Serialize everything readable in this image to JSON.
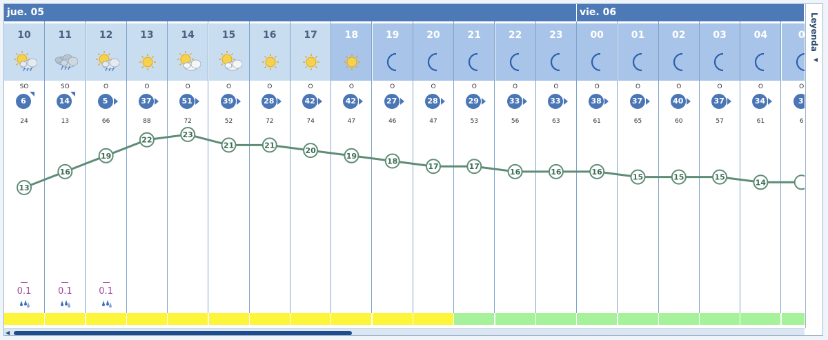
{
  "days": [
    {
      "label": "jue. 05"
    },
    {
      "label": "vie. 06"
    }
  ],
  "legend": {
    "label": "Leyenda",
    "arrow_icon": "arrow-left-icon"
  },
  "hours": [
    {
      "hour": "10",
      "period": "day",
      "icon": "sun-cloud-rain-icon",
      "wind_dir": "SO",
      "wind": "6",
      "wind_arrow": "ne",
      "humidity": "24",
      "temp": "13",
      "precip": "0.1",
      "band": "yellow"
    },
    {
      "hour": "11",
      "period": "day",
      "icon": "cloud-rain-icon",
      "wind_dir": "SO",
      "wind": "14",
      "wind_arrow": "ne",
      "humidity": "13",
      "temp": "16",
      "precip": "0.1",
      "band": "yellow"
    },
    {
      "hour": "12",
      "period": "day",
      "icon": "sun-cloud-rain-icon",
      "wind_dir": "O",
      "wind": "5",
      "wind_arrow": "e",
      "humidity": "66",
      "temp": "19",
      "precip": "0.1",
      "band": "yellow"
    },
    {
      "hour": "13",
      "period": "day",
      "icon": "sun-icon",
      "wind_dir": "O",
      "wind": "37",
      "wind_arrow": "e",
      "humidity": "88",
      "temp": "22",
      "precip": "",
      "band": "yellow"
    },
    {
      "hour": "14",
      "period": "day",
      "icon": "sun-cloud-icon",
      "wind_dir": "O",
      "wind": "51",
      "wind_arrow": "e",
      "humidity": "72",
      "temp": "23",
      "precip": "",
      "band": "yellow"
    },
    {
      "hour": "15",
      "period": "day",
      "icon": "sun-cloud-icon",
      "wind_dir": "O",
      "wind": "39",
      "wind_arrow": "e",
      "humidity": "52",
      "temp": "21",
      "precip": "",
      "band": "yellow"
    },
    {
      "hour": "16",
      "period": "day",
      "icon": "sun-icon",
      "wind_dir": "O",
      "wind": "28",
      "wind_arrow": "e",
      "humidity": "72",
      "temp": "21",
      "precip": "",
      "band": "yellow"
    },
    {
      "hour": "17",
      "period": "day",
      "icon": "sun-icon",
      "wind_dir": "O",
      "wind": "42",
      "wind_arrow": "e",
      "humidity": "74",
      "temp": "20",
      "precip": "",
      "band": "yellow"
    },
    {
      "hour": "18",
      "period": "night",
      "icon": "sun-icon",
      "wind_dir": "O",
      "wind": "42",
      "wind_arrow": "e",
      "humidity": "47",
      "temp": "19",
      "precip": "",
      "band": "yellow"
    },
    {
      "hour": "19",
      "period": "night",
      "icon": "moon-icon",
      "wind_dir": "O",
      "wind": "27",
      "wind_arrow": "e",
      "humidity": "46",
      "temp": "18",
      "precip": "",
      "band": "yellow"
    },
    {
      "hour": "20",
      "period": "night",
      "icon": "moon-icon",
      "wind_dir": "O",
      "wind": "28",
      "wind_arrow": "e",
      "humidity": "47",
      "temp": "17",
      "precip": "",
      "band": "yellow"
    },
    {
      "hour": "21",
      "period": "night",
      "icon": "moon-icon",
      "wind_dir": "O",
      "wind": "29",
      "wind_arrow": "e",
      "humidity": "53",
      "temp": "17",
      "precip": "",
      "band": "green"
    },
    {
      "hour": "22",
      "period": "night",
      "icon": "moon-icon",
      "wind_dir": "O",
      "wind": "33",
      "wind_arrow": "e",
      "humidity": "56",
      "temp": "16",
      "precip": "",
      "band": "green"
    },
    {
      "hour": "23",
      "period": "night",
      "icon": "moon-icon",
      "wind_dir": "O",
      "wind": "33",
      "wind_arrow": "e",
      "humidity": "63",
      "temp": "16",
      "precip": "",
      "band": "green"
    },
    {
      "hour": "00",
      "period": "night",
      "icon": "moon-icon",
      "wind_dir": "O",
      "wind": "38",
      "wind_arrow": "e",
      "humidity": "61",
      "temp": "16",
      "precip": "",
      "band": "green"
    },
    {
      "hour": "01",
      "period": "night",
      "icon": "moon-icon",
      "wind_dir": "O",
      "wind": "37",
      "wind_arrow": "e",
      "humidity": "65",
      "temp": "15",
      "precip": "",
      "band": "green"
    },
    {
      "hour": "02",
      "period": "night",
      "icon": "moon-icon",
      "wind_dir": "O",
      "wind": "40",
      "wind_arrow": "e",
      "humidity": "60",
      "temp": "15",
      "precip": "",
      "band": "green"
    },
    {
      "hour": "03",
      "period": "night",
      "icon": "moon-icon",
      "wind_dir": "O",
      "wind": "37",
      "wind_arrow": "e",
      "humidity": "57",
      "temp": "15",
      "precip": "",
      "band": "green"
    },
    {
      "hour": "04",
      "period": "night",
      "icon": "moon-icon",
      "wind_dir": "O",
      "wind": "34",
      "wind_arrow": "e",
      "humidity": "61",
      "temp": "14",
      "precip": "",
      "band": "green"
    },
    {
      "hour": "0",
      "period": "night",
      "icon": "moon-icon",
      "wind_dir": "O",
      "wind": "3",
      "wind_arrow": "e",
      "humidity": "6",
      "temp": "",
      "precip": "",
      "band": "green"
    }
  ],
  "scrollbar": {
    "position": 0.0
  },
  "colors": {
    "day_header": "#c9ddf1",
    "night_header": "#a8c4e8",
    "day_band": "#4d7ab6",
    "wind_circle": "#4a76b5",
    "temp_line": "#5e8c76",
    "precip": "#a04a9a",
    "band_yellow": "#fdf53a",
    "band_green": "#a6f29a"
  }
}
